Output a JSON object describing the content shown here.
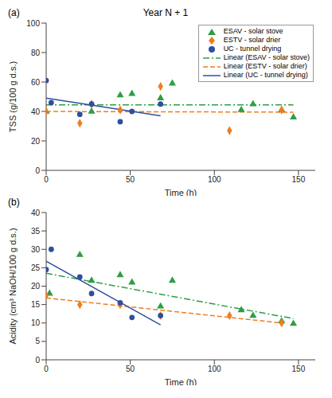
{
  "chart_data": [
    {
      "type": "scatter",
      "title": "Year N + 1",
      "annotations": [
        "(a)"
      ],
      "x_label": "Time (h)",
      "y_label": "TSS (g/100 g d.s.)",
      "xlim": [
        0,
        160
      ],
      "xticks": [
        0,
        50,
        100,
        150
      ],
      "ylim": [
        0,
        100
      ],
      "yticks": [
        0,
        20,
        40,
        60,
        80,
        100
      ],
      "legend": "top right",
      "series": [
        {
          "name": "ESAV - solar stove",
          "color": "#2e9e44",
          "marker": "triangle",
          "x": [
            0,
            27,
            44,
            51,
            68,
            75,
            116,
            123,
            140,
            147
          ],
          "values": [
            40,
            40,
            51,
            52,
            49,
            59,
            41,
            45,
            41,
            36
          ]
        },
        {
          "name": "ESTV - solar drier",
          "color": "#f07d1e",
          "marker": "diamond",
          "x": [
            0,
            20,
            27,
            44,
            68,
            109,
            140
          ],
          "values": [
            40,
            32,
            45,
            41,
            57,
            27,
            41
          ]
        },
        {
          "name": "UC - tunnel drying",
          "color": "#2e4fa0",
          "marker": "circle",
          "x": [
            0,
            3,
            20,
            27,
            44,
            51,
            68
          ],
          "values": [
            61,
            46,
            38,
            45,
            33,
            40,
            45
          ]
        },
        {
          "name": "Linear (ESAV - solar stove)",
          "type": "line",
          "color": "#2e9e44",
          "line_style": "dashdot",
          "x": [
            0,
            147
          ],
          "values": [
            44.5,
            44.5
          ]
        },
        {
          "name": "Linear (ESTV - solar drier)",
          "type": "line",
          "color": "#f07d1e",
          "line_style": "dashed",
          "x": [
            0,
            147
          ],
          "values": [
            40,
            39.5
          ]
        },
        {
          "name": "Linear (UC - tunnel drying)",
          "type": "line",
          "color": "#2e4fa0",
          "line_style": "solid",
          "x": [
            0,
            68
          ],
          "values": [
            49,
            37
          ]
        }
      ]
    },
    {
      "type": "scatter",
      "annotations": [
        "(b)"
      ],
      "x_label": "Time (h)",
      "y_label": "Acidity (cm³ NaOH/100 g d.s.)",
      "xlim": [
        0,
        160
      ],
      "xticks": [
        0,
        50,
        100,
        150
      ],
      "ylim": [
        0,
        40
      ],
      "yticks": [
        0,
        5,
        10,
        15,
        20,
        25,
        30,
        35,
        40
      ],
      "series": [
        {
          "color": "#2e9e44",
          "marker": "triangle",
          "x": [
            2,
            20,
            27,
            44,
            51,
            68,
            75,
            116,
            123,
            140,
            147
          ],
          "values": [
            18,
            28.5,
            21.5,
            23,
            21,
            14.5,
            21.5,
            13.5,
            12,
            10.5,
            9.8
          ]
        },
        {
          "color": "#f07d1e",
          "marker": "diamond",
          "x": [
            0,
            20,
            44,
            68,
            109,
            140
          ],
          "values": [
            17.5,
            15,
            15,
            12,
            12,
            10
          ]
        },
        {
          "color": "#2e4fa0",
          "marker": "circle",
          "x": [
            0,
            3,
            20,
            27,
            44,
            51,
            68
          ],
          "values": [
            24.5,
            30,
            22.5,
            18,
            15.5,
            11.5,
            12
          ]
        },
        {
          "type": "line",
          "color": "#2e9e44",
          "line_style": "dashdot",
          "x": [
            0,
            147
          ],
          "values": [
            23.5,
            11.2
          ]
        },
        {
          "type": "line",
          "color": "#f07d1e",
          "line_style": "dashed",
          "x": [
            0,
            140
          ],
          "values": [
            16.8,
            10
          ]
        },
        {
          "type": "line",
          "color": "#2e4fa0",
          "line_style": "solid",
          "x": [
            0,
            68
          ],
          "values": [
            26.8,
            9.5
          ]
        }
      ]
    }
  ]
}
